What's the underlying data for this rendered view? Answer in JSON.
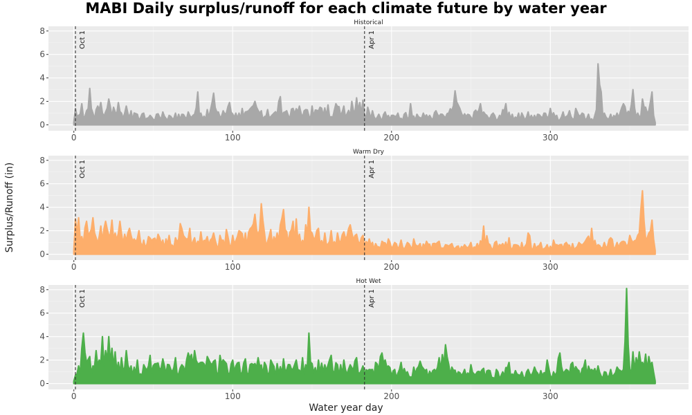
{
  "title": "MABI Daily surplus/runoff for each climate future by water year",
  "ylabel": "Surplus/Runoff (in)",
  "xlabel": "Water year day",
  "chart_data": {
    "type": "area",
    "title": "MABI Daily surplus/runoff for each climate future by water year",
    "xlabel": "Water year day",
    "ylabel": "Surplus/Runoff (in)",
    "xlim": [
      -16,
      387
    ],
    "ylim": [
      -0.5,
      8.4
    ],
    "x_ticks": [
      0,
      100,
      200,
      300
    ],
    "y_ticks": [
      0,
      2,
      4,
      6,
      8
    ],
    "reference_lines": [
      {
        "x": 1,
        "label": "Oct 1"
      },
      {
        "x": 183,
        "label": "Apr 1"
      }
    ],
    "grid": true,
    "panels": [
      {
        "name": "Historical",
        "color": "#a8a8a8",
        "peaks": [
          [
            0,
            0.2
          ],
          [
            1,
            1.4
          ],
          [
            3,
            0.8
          ],
          [
            5,
            1.8
          ],
          [
            8,
            1.2
          ],
          [
            10,
            3.1
          ],
          [
            12,
            1.0
          ],
          [
            15,
            1.6
          ],
          [
            17,
            1.9
          ],
          [
            20,
            1.1
          ],
          [
            22,
            2.2
          ],
          [
            25,
            1.5
          ],
          [
            28,
            1.9
          ],
          [
            30,
            1.0
          ],
          [
            33,
            1.6
          ],
          [
            36,
            1.2
          ],
          [
            40,
            0.9
          ],
          [
            44,
            1.0
          ],
          [
            48,
            0.8
          ],
          [
            52,
            0.9
          ],
          [
            56,
            1.1
          ],
          [
            60,
            0.8
          ],
          [
            64,
            1.0
          ],
          [
            68,
            0.9
          ],
          [
            72,
            1.1
          ],
          [
            76,
            0.9
          ],
          [
            78,
            2.8
          ],
          [
            80,
            1.0
          ],
          [
            84,
            1.3
          ],
          [
            88,
            2.7
          ],
          [
            90,
            1.1
          ],
          [
            94,
            1.2
          ],
          [
            98,
            1.9
          ],
          [
            102,
            1.0
          ],
          [
            106,
            1.4
          ],
          [
            110,
            1.2
          ],
          [
            114,
            2.0
          ],
          [
            118,
            1.2
          ],
          [
            122,
            1.3
          ],
          [
            126,
            1.0
          ],
          [
            130,
            2.4
          ],
          [
            134,
            1.2
          ],
          [
            138,
            1.4
          ],
          [
            142,
            1.6
          ],
          [
            146,
            1.3
          ],
          [
            150,
            1.6
          ],
          [
            155,
            1.5
          ],
          [
            160,
            1.7
          ],
          [
            165,
            1.8
          ],
          [
            170,
            1.6
          ],
          [
            175,
            2.0
          ],
          [
            178,
            2.3
          ],
          [
            182,
            2.1
          ],
          [
            185,
            1.5
          ],
          [
            188,
            1.2
          ],
          [
            192,
            0.9
          ],
          [
            196,
            1.1
          ],
          [
            200,
            0.8
          ],
          [
            204,
            1.0
          ],
          [
            208,
            0.9
          ],
          [
            212,
            1.8
          ],
          [
            216,
            0.9
          ],
          [
            220,
            1.0
          ],
          [
            224,
            0.8
          ],
          [
            228,
            1.2
          ],
          [
            232,
            0.9
          ],
          [
            236,
            1.0
          ],
          [
            240,
            2.9
          ],
          [
            244,
            1.0
          ],
          [
            248,
            0.9
          ],
          [
            252,
            1.1
          ],
          [
            256,
            1.8
          ],
          [
            260,
            0.8
          ],
          [
            264,
            1.0
          ],
          [
            268,
            0.8
          ],
          [
            272,
            1.8
          ],
          [
            276,
            0.9
          ],
          [
            280,
            1.0
          ],
          [
            286,
            1.1
          ],
          [
            292,
            0.9
          ],
          [
            296,
            1.0
          ],
          [
            300,
            1.4
          ],
          [
            304,
            0.8
          ],
          [
            308,
            1.1
          ],
          [
            312,
            1.2
          ],
          [
            316,
            1.4
          ],
          [
            320,
            1.0
          ],
          [
            324,
            0.9
          ],
          [
            328,
            0.8
          ],
          [
            330,
            5.2
          ],
          [
            334,
            1.0
          ],
          [
            338,
            0.9
          ],
          [
            342,
            1.0
          ],
          [
            346,
            1.8
          ],
          [
            350,
            1.0
          ],
          [
            352,
            3.0
          ],
          [
            355,
            1.0
          ],
          [
            358,
            2.2
          ],
          [
            360,
            1.5
          ],
          [
            362,
            1.2
          ],
          [
            364,
            2.8
          ],
          [
            366,
            0.2
          ]
        ]
      },
      {
        "name": "Warm Dry",
        "color": "#fdae6b",
        "peaks": [
          [
            0,
            0.3
          ],
          [
            1,
            3.0
          ],
          [
            3,
            3.1
          ],
          [
            5,
            1.5
          ],
          [
            8,
            2.8
          ],
          [
            10,
            1.8
          ],
          [
            12,
            3.1
          ],
          [
            14,
            1.4
          ],
          [
            17,
            2.4
          ],
          [
            20,
            2.8
          ],
          [
            22,
            1.6
          ],
          [
            24,
            2.9
          ],
          [
            26,
            1.8
          ],
          [
            29,
            2.8
          ],
          [
            32,
            1.7
          ],
          [
            35,
            2.2
          ],
          [
            38,
            1.3
          ],
          [
            41,
            2.0
          ],
          [
            44,
            1.2
          ],
          [
            47,
            1.5
          ],
          [
            50,
            1.3
          ],
          [
            53,
            1.7
          ],
          [
            56,
            1.2
          ],
          [
            60,
            1.6
          ],
          [
            64,
            1.4
          ],
          [
            67,
            2.6
          ],
          [
            70,
            1.4
          ],
          [
            73,
            2.2
          ],
          [
            76,
            1.4
          ],
          [
            80,
            1.9
          ],
          [
            84,
            1.5
          ],
          [
            88,
            1.8
          ],
          [
            92,
            1.6
          ],
          [
            96,
            2.1
          ],
          [
            100,
            1.6
          ],
          [
            104,
            2.0
          ],
          [
            108,
            1.8
          ],
          [
            112,
            2.3
          ],
          [
            114,
            3.4
          ],
          [
            116,
            1.6
          ],
          [
            118,
            4.3
          ],
          [
            120,
            1.8
          ],
          [
            124,
            2.1
          ],
          [
            128,
            1.8
          ],
          [
            130,
            2.5
          ],
          [
            132,
            3.8
          ],
          [
            134,
            1.9
          ],
          [
            138,
            2.8
          ],
          [
            140,
            3.0
          ],
          [
            142,
            1.7
          ],
          [
            146,
            2.5
          ],
          [
            148,
            4.0
          ],
          [
            150,
            1.8
          ],
          [
            154,
            2.2
          ],
          [
            158,
            1.8
          ],
          [
            162,
            2.0
          ],
          [
            166,
            1.8
          ],
          [
            170,
            1.9
          ],
          [
            174,
            2.5
          ],
          [
            178,
            1.7
          ],
          [
            182,
            1.6
          ],
          [
            186,
            1.3
          ],
          [
            190,
            0.9
          ],
          [
            194,
            1.1
          ],
          [
            198,
            1.3
          ],
          [
            202,
            1.0
          ],
          [
            206,
            1.2
          ],
          [
            210,
            1.0
          ],
          [
            214,
            1.3
          ],
          [
            218,
            0.9
          ],
          [
            222,
            1.1
          ],
          [
            226,
            0.9
          ],
          [
            230,
            1.1
          ],
          [
            234,
            0.8
          ],
          [
            238,
            0.9
          ],
          [
            242,
            0.7
          ],
          [
            246,
            0.8
          ],
          [
            250,
            1.0
          ],
          [
            254,
            0.9
          ],
          [
            258,
            2.4
          ],
          [
            262,
            0.8
          ],
          [
            266,
            1.1
          ],
          [
            270,
            0.9
          ],
          [
            274,
            1.4
          ],
          [
            278,
            0.8
          ],
          [
            282,
            1.0
          ],
          [
            286,
            1.8
          ],
          [
            290,
            0.9
          ],
          [
            294,
            1.0
          ],
          [
            298,
            0.8
          ],
          [
            302,
            1.2
          ],
          [
            306,
            0.8
          ],
          [
            310,
            1.0
          ],
          [
            314,
            0.9
          ],
          [
            318,
            1.0
          ],
          [
            322,
            1.1
          ],
          [
            326,
            2.2
          ],
          [
            330,
            0.8
          ],
          [
            334,
            1.0
          ],
          [
            338,
            1.4
          ],
          [
            342,
            1.0
          ],
          [
            346,
            1.1
          ],
          [
            350,
            1.6
          ],
          [
            354,
            1.2
          ],
          [
            358,
            5.4
          ],
          [
            360,
            1.3
          ],
          [
            362,
            1.8
          ],
          [
            364,
            2.9
          ],
          [
            366,
            0.3
          ]
        ]
      },
      {
        "name": "Hot Wet",
        "color": "#4daf4a",
        "peaks": [
          [
            0,
            0.2
          ],
          [
            1,
            0.7
          ],
          [
            3,
            1.5
          ],
          [
            5,
            3.0
          ],
          [
            6,
            4.3
          ],
          [
            8,
            1.8
          ],
          [
            10,
            2.3
          ],
          [
            12,
            1.5
          ],
          [
            14,
            2.8
          ],
          [
            16,
            2.0
          ],
          [
            18,
            4.0
          ],
          [
            20,
            2.8
          ],
          [
            22,
            4.0
          ],
          [
            24,
            3.0
          ],
          [
            26,
            2.7
          ],
          [
            28,
            1.8
          ],
          [
            30,
            2.2
          ],
          [
            33,
            2.8
          ],
          [
            36,
            1.5
          ],
          [
            40,
            2.0
          ],
          [
            44,
            1.6
          ],
          [
            48,
            2.4
          ],
          [
            52,
            1.7
          ],
          [
            56,
            2.1
          ],
          [
            60,
            1.6
          ],
          [
            64,
            2.2
          ],
          [
            68,
            1.6
          ],
          [
            72,
            2.6
          ],
          [
            76,
            2.8
          ],
          [
            80,
            1.8
          ],
          [
            84,
            2.3
          ],
          [
            88,
            1.9
          ],
          [
            92,
            2.4
          ],
          [
            96,
            1.7
          ],
          [
            100,
            2.0
          ],
          [
            104,
            1.8
          ],
          [
            108,
            2.1
          ],
          [
            112,
            1.7
          ],
          [
            116,
            2.2
          ],
          [
            120,
            1.8
          ],
          [
            124,
            2.0
          ],
          [
            128,
            1.7
          ],
          [
            132,
            2.1
          ],
          [
            136,
            1.6
          ],
          [
            140,
            2.0
          ],
          [
            144,
            2.2
          ],
          [
            146,
            1.6
          ],
          [
            148,
            4.3
          ],
          [
            150,
            1.7
          ],
          [
            154,
            2.0
          ],
          [
            158,
            1.6
          ],
          [
            162,
            2.4
          ],
          [
            166,
            1.6
          ],
          [
            170,
            2.0
          ],
          [
            174,
            1.6
          ],
          [
            178,
            2.2
          ],
          [
            182,
            1.5
          ],
          [
            186,
            1.2
          ],
          [
            190,
            1.8
          ],
          [
            194,
            2.6
          ],
          [
            198,
            1.5
          ],
          [
            202,
            1.2
          ],
          [
            206,
            1.8
          ],
          [
            210,
            1.0
          ],
          [
            214,
            1.4
          ],
          [
            218,
            1.9
          ],
          [
            222,
            1.2
          ],
          [
            226,
            1.1
          ],
          [
            230,
            2.2
          ],
          [
            234,
            3.3
          ],
          [
            238,
            1.4
          ],
          [
            242,
            1.0
          ],
          [
            246,
            1.2
          ],
          [
            250,
            1.6
          ],
          [
            254,
            1.0
          ],
          [
            258,
            1.3
          ],
          [
            262,
            1.1
          ],
          [
            266,
            1.2
          ],
          [
            270,
            1.0
          ],
          [
            274,
            1.8
          ],
          [
            278,
            1.1
          ],
          [
            282,
            1.0
          ],
          [
            286,
            1.2
          ],
          [
            290,
            1.4
          ],
          [
            294,
            1.1
          ],
          [
            298,
            2.0
          ],
          [
            302,
            1.0
          ],
          [
            306,
            2.6
          ],
          [
            310,
            1.2
          ],
          [
            314,
            1.8
          ],
          [
            318,
            1.1
          ],
          [
            322,
            2.0
          ],
          [
            326,
            1.2
          ],
          [
            330,
            1.5
          ],
          [
            334,
            1.0
          ],
          [
            338,
            1.2
          ],
          [
            342,
            1.4
          ],
          [
            345,
            1.0
          ],
          [
            348,
            8.1
          ],
          [
            350,
            1.2
          ],
          [
            352,
            2.7
          ],
          [
            354,
            2.2
          ],
          [
            356,
            2.7
          ],
          [
            358,
            1.8
          ],
          [
            360,
            2.5
          ],
          [
            362,
            2.3
          ],
          [
            364,
            1.8
          ],
          [
            366,
            0.2
          ]
        ]
      }
    ]
  }
}
